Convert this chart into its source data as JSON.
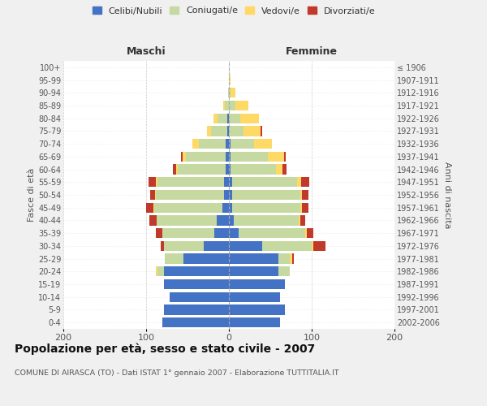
{
  "age_groups": [
    "0-4",
    "5-9",
    "10-14",
    "15-19",
    "20-24",
    "25-29",
    "30-34",
    "35-39",
    "40-44",
    "45-49",
    "50-54",
    "55-59",
    "60-64",
    "65-69",
    "70-74",
    "75-79",
    "80-84",
    "85-89",
    "90-94",
    "95-99",
    "100+"
  ],
  "birth_years": [
    "2002-2006",
    "1997-2001",
    "1992-1996",
    "1987-1991",
    "1982-1986",
    "1977-1981",
    "1972-1976",
    "1967-1971",
    "1962-1966",
    "1957-1961",
    "1952-1956",
    "1947-1951",
    "1942-1946",
    "1937-1941",
    "1932-1936",
    "1927-1931",
    "1922-1926",
    "1917-1921",
    "1912-1916",
    "1907-1911",
    "≤ 1906"
  ],
  "maschi_celibi": [
    80,
    78,
    72,
    78,
    78,
    55,
    30,
    18,
    15,
    8,
    6,
    6,
    4,
    4,
    4,
    2,
    2,
    0,
    0,
    0,
    0
  ],
  "maschi_coniugati": [
    0,
    0,
    0,
    0,
    8,
    22,
    48,
    62,
    72,
    82,
    82,
    80,
    58,
    48,
    32,
    20,
    12,
    5,
    1,
    0,
    0
  ],
  "maschi_vedovi": [
    0,
    0,
    0,
    0,
    2,
    0,
    0,
    0,
    0,
    1,
    1,
    2,
    2,
    4,
    8,
    4,
    5,
    2,
    0,
    0,
    0
  ],
  "maschi_divorziati": [
    0,
    0,
    0,
    0,
    0,
    0,
    4,
    8,
    9,
    9,
    6,
    9,
    4,
    2,
    0,
    0,
    0,
    0,
    0,
    0,
    0
  ],
  "femmine_nubili": [
    62,
    68,
    62,
    68,
    60,
    60,
    40,
    12,
    6,
    4,
    4,
    4,
    2,
    2,
    2,
    0,
    0,
    0,
    0,
    0,
    0
  ],
  "femmine_coniugate": [
    0,
    0,
    0,
    0,
    14,
    14,
    60,
    80,
    78,
    82,
    82,
    78,
    55,
    45,
    28,
    18,
    14,
    8,
    2,
    0,
    0
  ],
  "femmine_vedove": [
    0,
    0,
    0,
    0,
    0,
    2,
    2,
    2,
    2,
    2,
    2,
    5,
    8,
    20,
    22,
    20,
    22,
    16,
    6,
    2,
    0
  ],
  "femmine_divorziate": [
    0,
    0,
    0,
    0,
    0,
    2,
    15,
    8,
    6,
    8,
    8,
    10,
    5,
    2,
    0,
    2,
    0,
    0,
    0,
    0,
    0
  ],
  "colors": {
    "celibi_nubili": "#4472C4",
    "coniugati": "#C5D9A0",
    "vedovi": "#FFD966",
    "divorziati": "#C0392B"
  },
  "xlim": [
    -200,
    200
  ],
  "xticks": [
    -200,
    -100,
    0,
    100,
    200
  ],
  "xticklabels": [
    "200",
    "100",
    "0",
    "100",
    "200"
  ],
  "title": "Popolazione per età, sesso e stato civile - 2007",
  "subtitle": "COMUNE DI AIRASCA (TO) - Dati ISTAT 1° gennaio 2007 - Elaborazione TUTTITALIA.IT",
  "ylabel_left": "Fasce di età",
  "ylabel_right": "Anni di nascita",
  "maschi_label": "Maschi",
  "femmine_label": "Femmine",
  "legend_labels": [
    "Celibi/Nubili",
    "Coniugati/e",
    "Vedovi/e",
    "Divorziati/e"
  ],
  "bg_color": "#f0f0f0",
  "plot_bg": "#ffffff"
}
